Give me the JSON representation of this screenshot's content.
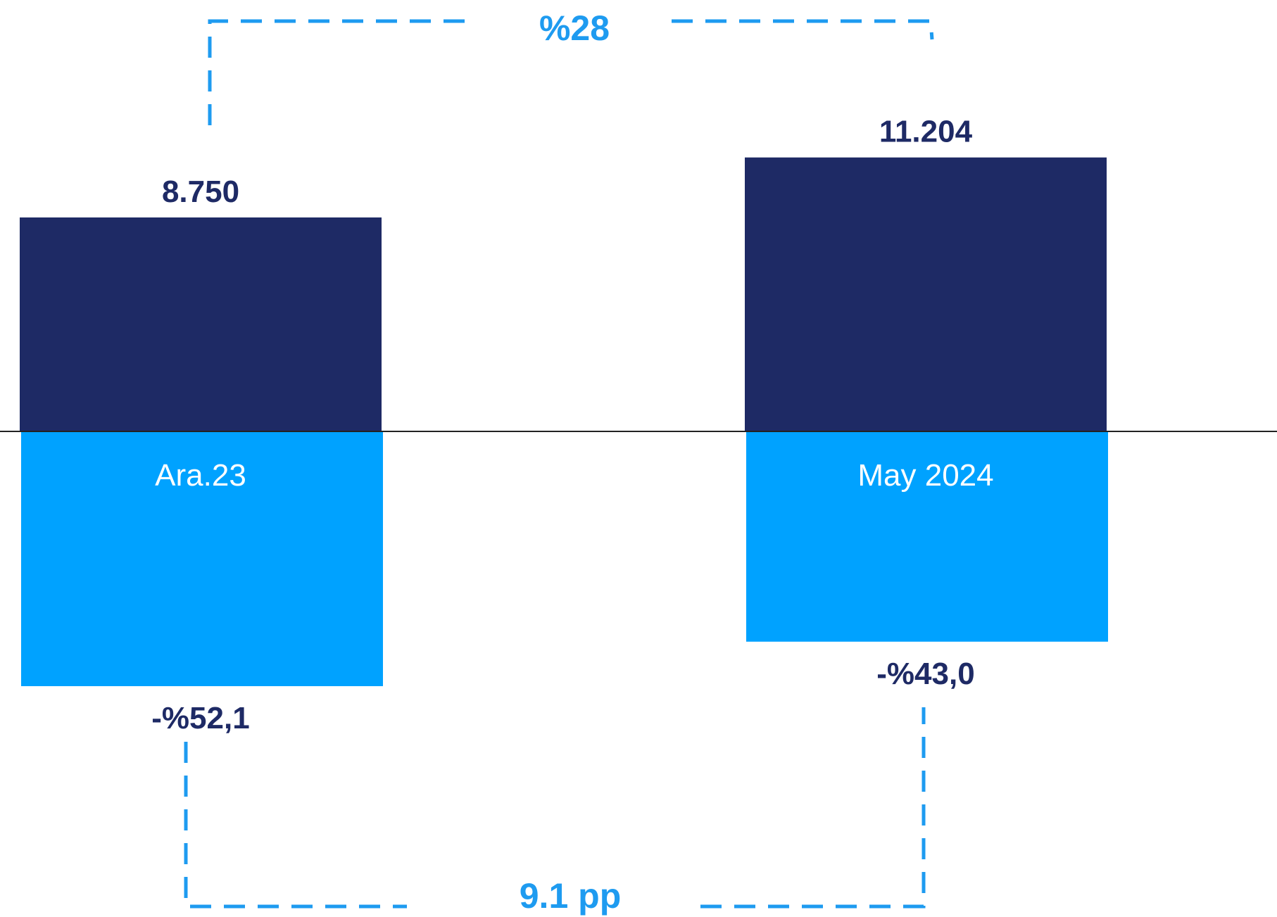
{
  "chart_data": {
    "type": "bar",
    "categories": [
      "Ara.23",
      "May 2024"
    ],
    "series": [
      {
        "values": [
          8750,
          11204
        ],
        "labels": [
          "8.750",
          "11.204"
        ],
        "color": "#1e2a65"
      },
      {
        "values": [
          -52.1,
          -43.0
        ],
        "labels": [
          "-%52,1",
          "-%43,0"
        ],
        "color": "#00a2ff"
      }
    ],
    "annotations": {
      "top_change": "%28",
      "bottom_change": "9.1 pp",
      "color": "#1e9bf0"
    },
    "colors": {
      "text_dark": "#1e2a65",
      "category_text": "#ffffff",
      "baseline": "#222222"
    }
  }
}
